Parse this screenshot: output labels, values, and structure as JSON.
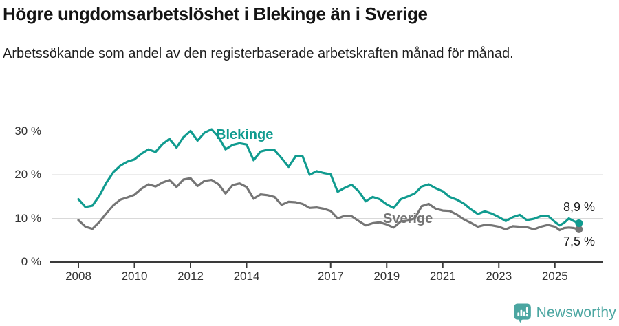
{
  "header": {
    "title": "Högre ungdomsarbetslöshet i Blekinge än i Sverige",
    "subtitle": "Arbetssökande som andel av den registerbaserade arbetskraften månad för månad."
  },
  "chart_data": {
    "type": "line",
    "title": "Högre ungdomsarbetslöshet i Blekinge än i Sverige",
    "subtitle": "Arbetssökande som andel av den registerbaserade arbetskraften månad för månad.",
    "xlabel": "",
    "ylabel": "",
    "grid": "horizontal",
    "legend": "inline-labels",
    "xlim": [
      2007.8,
      2026.6
    ],
    "ylim": [
      0,
      32
    ],
    "y_ticks": [
      {
        "value": 0,
        "label": "0 %"
      },
      {
        "value": 10,
        "label": "10 %"
      },
      {
        "value": 20,
        "label": "20 %"
      },
      {
        "value": 30,
        "label": "30 %"
      }
    ],
    "x_ticks": [
      {
        "value": 2008,
        "label": "2008"
      },
      {
        "value": 2010,
        "label": "2010"
      },
      {
        "value": 2012,
        "label": "2012"
      },
      {
        "value": 2014,
        "label": "2014"
      },
      {
        "value": 2017,
        "label": "2017"
      },
      {
        "value": 2019,
        "label": "2019"
      },
      {
        "value": 2021,
        "label": "2021"
      },
      {
        "value": 2023,
        "label": "2023"
      },
      {
        "value": 2025,
        "label": "2025"
      }
    ],
    "x": [
      2008,
      2008.25,
      2008.5,
      2008.75,
      2009,
      2009.25,
      2009.5,
      2009.75,
      2010,
      2010.25,
      2010.5,
      2010.75,
      2011,
      2011.25,
      2011.5,
      2011.75,
      2012,
      2012.25,
      2012.5,
      2012.75,
      2013,
      2013.25,
      2013.5,
      2013.75,
      2014,
      2014.25,
      2014.5,
      2014.75,
      2015,
      2015.25,
      2015.5,
      2015.75,
      2016,
      2016.25,
      2016.5,
      2016.75,
      2017,
      2017.25,
      2017.5,
      2017.75,
      2018,
      2018.25,
      2018.5,
      2018.75,
      2019,
      2019.25,
      2019.5,
      2019.75,
      2020,
      2020.25,
      2020.5,
      2020.75,
      2021,
      2021.25,
      2021.5,
      2021.75,
      2022,
      2022.25,
      2022.5,
      2022.75,
      2023,
      2023.25,
      2023.5,
      2023.75,
      2024,
      2024.25,
      2024.5,
      2024.75,
      2025,
      2025.17,
      2025.33,
      2025.5,
      2025.67,
      2025.86
    ],
    "series": [
      {
        "name": "Blekinge",
        "color": "#109b8f",
        "end_label": "8,9 %",
        "end_value": 8.9,
        "values": [
          14.4,
          12.6,
          12.9,
          15.2,
          18.2,
          20.6,
          22.1,
          23.0,
          23.5,
          24.8,
          25.8,
          25.2,
          27.0,
          28.2,
          26.2,
          28.6,
          30.0,
          27.8,
          29.6,
          30.4,
          28.6,
          25.8,
          26.8,
          27.2,
          26.9,
          23.3,
          25.3,
          25.7,
          25.6,
          23.8,
          21.8,
          24.2,
          24.2,
          20.0,
          20.8,
          20.4,
          20.1,
          16.1,
          17.0,
          17.7,
          16.2,
          13.9,
          14.9,
          14.4,
          13.2,
          12.4,
          14.4,
          15.0,
          15.7,
          17.3,
          17.8,
          16.9,
          16.2,
          14.9,
          14.3,
          13.4,
          12.1,
          11.0,
          11.6,
          11.1,
          10.3,
          9.4,
          10.3,
          10.8,
          9.6,
          9.9,
          10.5,
          10.6,
          9.2,
          8.4,
          9.0,
          10.0,
          9.4,
          8.9
        ]
      },
      {
        "name": "Sverige",
        "color": "#757575",
        "end_label": "7,5 %",
        "end_value": 7.5,
        "values": [
          9.6,
          8.1,
          7.6,
          9.2,
          11.2,
          13.0,
          14.3,
          14.8,
          15.4,
          16.8,
          17.8,
          17.3,
          18.2,
          18.8,
          17.2,
          18.9,
          19.2,
          17.4,
          18.6,
          18.8,
          17.8,
          15.7,
          17.6,
          18.0,
          17.2,
          14.5,
          15.5,
          15.3,
          14.9,
          13.1,
          13.8,
          13.7,
          13.3,
          12.4,
          12.5,
          12.2,
          11.7,
          10.0,
          10.6,
          10.5,
          9.4,
          8.4,
          8.9,
          9.1,
          8.6,
          7.9,
          9.3,
          9.5,
          10.0,
          12.8,
          13.3,
          12.2,
          11.8,
          11.7,
          10.9,
          9.8,
          9.0,
          8.1,
          8.5,
          8.4,
          8.1,
          7.5,
          8.2,
          8.1,
          8.0,
          7.5,
          8.1,
          8.5,
          8.1,
          7.3,
          7.8,
          7.9,
          7.8,
          7.5
        ]
      }
    ]
  },
  "footer": {
    "brand": "Newsworthy",
    "brand_color": "#4ba6a1",
    "logo_icon": "bar-chart-speech-bubble-icon"
  },
  "colors": {
    "blekinge": "#109b8f",
    "sverige": "#757575",
    "axis": "#3a3a3a",
    "gridline": "#d9d9d9",
    "text": "#141414"
  }
}
